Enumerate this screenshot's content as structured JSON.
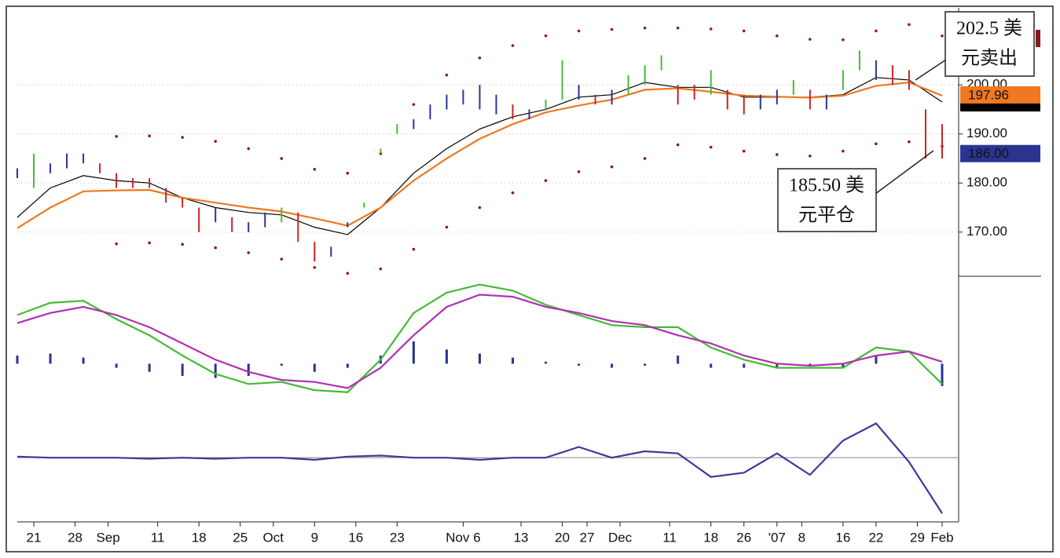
{
  "chart_data": [
    {
      "type": "ohlc",
      "xlim": [
        0,
        114
      ],
      "ylim": [
        161,
        215.7
      ],
      "yticks": [
        {
          "value": 170,
          "label": "170.00"
        },
        {
          "value": 180,
          "label": "180.00"
        },
        {
          "value": 190,
          "label": "190.00"
        },
        {
          "value": 200,
          "label": "200.00"
        }
      ],
      "grid": true,
      "bars": {
        "x": [
          0,
          2,
          4,
          6,
          8,
          10,
          12,
          14,
          16,
          18,
          20,
          22,
          24,
          26,
          28,
          30,
          32,
          34,
          36,
          38,
          40,
          42,
          44,
          46,
          48,
          50,
          52,
          54,
          56,
          58,
          60,
          62,
          64,
          66,
          68,
          70,
          72,
          74,
          76,
          78,
          80,
          82,
          84,
          86,
          88,
          90,
          92,
          94,
          96,
          98,
          100,
          102,
          104,
          106,
          108,
          110,
          112
        ],
        "high": [
          183,
          186,
          184,
          186,
          186,
          184,
          182,
          181,
          181,
          179,
          177,
          175,
          175,
          173,
          172,
          174,
          175,
          174,
          168,
          167,
          172,
          176,
          187,
          192,
          193,
          196,
          198,
          199,
          200,
          198,
          196,
          195,
          197,
          205,
          200,
          198,
          199,
          202,
          204,
          206,
          200,
          200,
          203,
          199,
          198,
          198,
          199,
          201,
          199,
          198,
          203,
          207,
          205,
          204,
          203,
          195,
          192
        ],
        "low": [
          181,
          179,
          182,
          183,
          184,
          182,
          179,
          179,
          179,
          176,
          175,
          170,
          172,
          170,
          170,
          171,
          172,
          168,
          164,
          165,
          171,
          175,
          186,
          190,
          191,
          193,
          195,
          196,
          195,
          194,
          193,
          193,
          195,
          197,
          197,
          196,
          196,
          198,
          200,
          203,
          196,
          197,
          198,
          195,
          194,
          195,
          196,
          198,
          195,
          195,
          199,
          203,
          201,
          200,
          199,
          185,
          185
        ],
        "colors": [
          "#2a3590",
          "#44bb33",
          "#2a3590",
          "#2a3590",
          "#2a3590",
          "#cc2222",
          "#cc2222",
          "#cc2222",
          "#cc2222",
          "#cc2222",
          "#cc2222",
          "#cc2222",
          "#2a3590",
          "#cc2222",
          "#2a3590",
          "#2a3590",
          "#44bb33",
          "#cc2222",
          "#cc2222",
          "#2a3590",
          "#2a3590",
          "#44bb33",
          "#44bb33",
          "#44bb33",
          "#2a3590",
          "#2a3590",
          "#2a3590",
          "#2a3590",
          "#2a3590",
          "#2a3590",
          "#cc2222",
          "#2a3590",
          "#44bb33",
          "#44bb33",
          "#2a3590",
          "#cc2222",
          "#2a3590",
          "#44bb33",
          "#44bb33",
          "#44bb33",
          "#cc2222",
          "#cc2222",
          "#44bb33",
          "#cc2222",
          "#cc2222",
          "#2a3590",
          "#2a3590",
          "#44bb33",
          "#cc2222",
          "#2a3590",
          "#44bb33",
          "#44bb33",
          "#2a3590",
          "#cc2222",
          "#cc2222",
          "#cc2222",
          "#cc2222"
        ]
      },
      "series": [
        {
          "color": "#000000",
          "style": "solid",
          "x": [
            0,
            4,
            8,
            12,
            16,
            20,
            24,
            28,
            32,
            36,
            40,
            44,
            48,
            52,
            56,
            60,
            64,
            68,
            72,
            76,
            80,
            84,
            88,
            92,
            96,
            100,
            104,
            108,
            112
          ],
          "values": [
            173,
            179,
            181.5,
            180.5,
            180,
            177,
            175,
            174,
            173.5,
            171,
            169.5,
            175,
            182,
            187,
            191,
            193.5,
            195,
            197.5,
            198,
            200.5,
            199.5,
            199.5,
            197.5,
            197.5,
            197.5,
            198,
            201.5,
            201,
            196.5
          ]
        },
        {
          "color": "#f07820",
          "style": "solid",
          "x": [
            0,
            4,
            8,
            12,
            16,
            20,
            24,
            28,
            32,
            36,
            40,
            44,
            48,
            52,
            56,
            60,
            64,
            68,
            72,
            76,
            80,
            84,
            88,
            92,
            96,
            100,
            104,
            108,
            112
          ],
          "values": [
            170.8,
            175,
            178.3,
            178.5,
            178.6,
            177,
            176,
            175,
            174.2,
            172.8,
            171.3,
            175,
            180.5,
            185,
            189,
            192,
            194.4,
            195.8,
            197,
            199,
            199.3,
            198.6,
            197.8,
            197.6,
            197.4,
            197.8,
            199.8,
            200.5,
            197.8
          ]
        },
        {
          "color": "#8b1a1a",
          "style": "dotted",
          "x": [
            12,
            16,
            20,
            24,
            28,
            32,
            36,
            40,
            44,
            48,
            52,
            56,
            60,
            64,
            68,
            72,
            76,
            80,
            84,
            88,
            92,
            96,
            100,
            104,
            108,
            112
          ],
          "values": [
            189.5,
            189.6,
            189.3,
            188.5,
            187,
            185,
            182.8,
            182,
            186,
            196,
            202,
            205.5,
            208,
            210,
            211,
            211.3,
            211.6,
            211.6,
            211.4,
            211,
            210,
            209.3,
            209.2,
            211,
            212.3,
            210
          ]
        },
        {
          "color": "#8b1a1a",
          "style": "dotted",
          "x": [
            12,
            16,
            20,
            24,
            28,
            32,
            36,
            40,
            44,
            48,
            52,
            56,
            60,
            64,
            68,
            72,
            76,
            80,
            84,
            88,
            92,
            96,
            100,
            104,
            108,
            112
          ],
          "values": [
            167.6,
            167.8,
            167.5,
            166.8,
            165.8,
            164.5,
            162.8,
            161.6,
            162.5,
            166.5,
            171,
            175,
            178,
            180.5,
            182.3,
            183.3,
            185,
            187.8,
            187.3,
            186.5,
            185.8,
            185.5,
            186.5,
            188,
            188.4,
            187.5
          ]
        }
      ],
      "price_tags": [
        {
          "value": 197.96,
          "label": "197.96",
          "color": "#f07820"
        },
        {
          "value": 186,
          "label": "186.00",
          "color": "#2a3590"
        }
      ],
      "annotations": [
        {
          "lines": [
            "202.5 美",
            "元卖出"
          ]
        },
        {
          "lines": [
            "185.50 美",
            "元平仓"
          ]
        }
      ]
    },
    {
      "type": "line",
      "xlim": [
        0,
        114
      ],
      "ylim": [
        -1.8,
        4
      ],
      "series": [
        {
          "color": "#44bb33",
          "x": [
            0,
            4,
            8,
            12,
            16,
            20,
            24,
            28,
            32,
            36,
            40,
            44,
            48,
            52,
            56,
            60,
            64,
            68,
            72,
            76,
            80,
            84,
            88,
            92,
            96,
            100,
            104,
            108,
            112
          ],
          "values": [
            2.4,
            3,
            3.1,
            2.2,
            1.4,
            0.4,
            -0.5,
            -1,
            -0.9,
            -1.3,
            -1.4,
            0.2,
            2.5,
            3.5,
            3.9,
            3.6,
            2.9,
            2.4,
            1.9,
            1.8,
            1.8,
            0.8,
            0.2,
            -0.2,
            -0.2,
            -0.2,
            0.8,
            0.6,
            -1
          ]
        },
        {
          "color": "#b030b0",
          "x": [
            0,
            4,
            8,
            12,
            16,
            20,
            24,
            28,
            32,
            36,
            40,
            44,
            48,
            52,
            56,
            60,
            64,
            68,
            72,
            76,
            80,
            84,
            88,
            92,
            96,
            100,
            104,
            108,
            112
          ],
          "values": [
            2,
            2.5,
            2.8,
            2.4,
            1.8,
            1,
            0.2,
            -0.4,
            -0.8,
            -0.9,
            -1.2,
            -0.2,
            1.4,
            2.8,
            3.4,
            3.3,
            2.8,
            2.5,
            2.1,
            1.9,
            1.4,
            1,
            0.4,
            0,
            -0.1,
            0,
            0.4,
            0.6,
            0.1
          ]
        }
      ],
      "histogram": {
        "color": "#2a3590",
        "x": [
          0,
          4,
          8,
          12,
          16,
          20,
          24,
          28,
          32,
          36,
          40,
          44,
          48,
          52,
          56,
          60,
          64,
          68,
          72,
          76,
          80,
          84,
          88,
          92,
          96,
          100,
          104,
          108,
          112
        ],
        "values": [
          0.4,
          0.5,
          0.3,
          -0.2,
          -0.4,
          -0.6,
          -0.7,
          -0.6,
          -0.1,
          -0.4,
          -0.2,
          0.4,
          1.1,
          0.7,
          0.5,
          0.3,
          0.1,
          -0.1,
          -0.2,
          -0.1,
          0.4,
          -0.2,
          -0.2,
          -0.2,
          -0.1,
          -0.2,
          0.4,
          0,
          -1.1
        ]
      }
    },
    {
      "type": "line",
      "xlim": [
        0,
        114
      ],
      "ylim": [
        -3,
        2.5
      ],
      "series": [
        {
          "color": "#3a3a9a",
          "x": [
            0,
            4,
            8,
            12,
            16,
            20,
            24,
            28,
            32,
            36,
            40,
            44,
            48,
            52,
            56,
            60,
            64,
            68,
            72,
            76,
            80,
            84,
            88,
            92,
            96,
            100,
            104,
            108,
            112
          ],
          "values": [
            0.05,
            0,
            0,
            0,
            -0.05,
            0,
            -0.05,
            0,
            0,
            -0.1,
            0.05,
            0.1,
            0,
            0,
            -0.1,
            0,
            0,
            0.5,
            0,
            0.3,
            0.2,
            -0.9,
            -0.7,
            0.2,
            -0.8,
            0.8,
            1.6,
            -0.2,
            -2.6
          ]
        }
      ],
      "xticks": [
        {
          "value": 2,
          "label": "21"
        },
        {
          "value": 7,
          "label": "28"
        },
        {
          "value": 11,
          "label": "Sep"
        },
        {
          "value": 17,
          "label": "11"
        },
        {
          "value": 22,
          "label": "18"
        },
        {
          "value": 27,
          "label": "25"
        },
        {
          "value": 31,
          "label": "Oct"
        },
        {
          "value": 36,
          "label": "9"
        },
        {
          "value": 41,
          "label": "16"
        },
        {
          "value": 46,
          "label": "23"
        },
        {
          "value": 54,
          "label": "Nov 6"
        },
        {
          "value": 61,
          "label": "13"
        },
        {
          "value": 66,
          "label": "20"
        },
        {
          "value": 69,
          "label": "27"
        },
        {
          "value": 73,
          "label": "Dec"
        },
        {
          "value": 79,
          "label": "11"
        },
        {
          "value": 84,
          "label": "18"
        },
        {
          "value": 88,
          "label": "26"
        },
        {
          "value": 92,
          "label": "'07"
        },
        {
          "value": 95,
          "label": "8"
        },
        {
          "value": 100,
          "label": "16"
        },
        {
          "value": 104,
          "label": "22"
        },
        {
          "value": 109,
          "label": "29"
        },
        {
          "value": 112,
          "label": "Feb"
        }
      ]
    }
  ]
}
